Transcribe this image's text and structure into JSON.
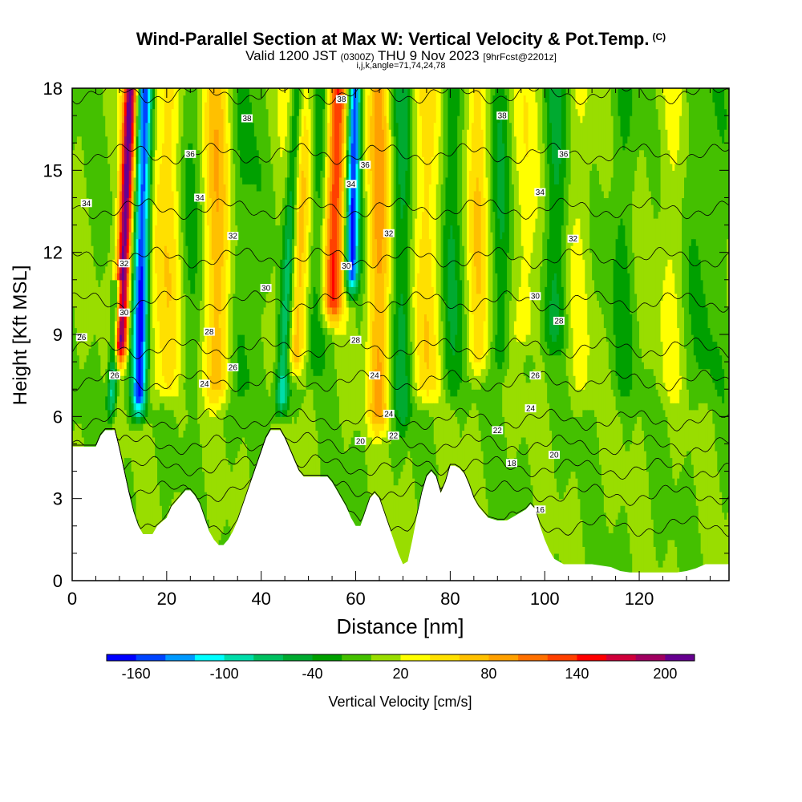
{
  "title": {
    "main": "Wind-Parallel Section at Max W: Vertical Velocity & Pot.Temp.",
    "copyright": "(C)",
    "valid_prefix": "Valid 1200 JST",
    "valid_utc": "(0300Z)",
    "valid_date": "THU 9 Nov 2023",
    "forecast": "[9hrFcst@2201z]",
    "indices": "i,j,k,angle=71,74,24,78"
  },
  "chart_data": {
    "type": "heatmap",
    "xlabel": "Distance [nm]",
    "ylabel": "Height [Kft MSL]",
    "xlim": [
      0,
      139
    ],
    "ylim": [
      0,
      18
    ],
    "xticks": [
      0,
      20,
      40,
      60,
      80,
      100,
      120
    ],
    "yticks": [
      0,
      3,
      6,
      9,
      12,
      15,
      18
    ],
    "colorbar": {
      "label": "Vertical Velocity [cm/s]",
      "ticks": [
        -160,
        -100,
        -40,
        20,
        80,
        140,
        200
      ],
      "levels": [
        -180,
        -160,
        -140,
        -120,
        -100,
        -80,
        -60,
        -40,
        -20,
        0,
        20,
        40,
        60,
        80,
        100,
        120,
        140,
        160,
        180,
        200,
        220
      ],
      "colors": [
        "#0000ff",
        "#0044ff",
        "#0099ff",
        "#00ffff",
        "#00ddaa",
        "#00c060",
        "#00aa30",
        "#00a000",
        "#44c000",
        "#99dd00",
        "#ffff00",
        "#ffe000",
        "#ffc000",
        "#ffa000",
        "#ff7000",
        "#ff4000",
        "#ff0000",
        "#d0003a",
        "#a00060",
        "#660090"
      ]
    },
    "background_w": 0,
    "w_features": [
      {
        "x": 10,
        "z": [
          7.5,
          18
        ],
        "w": 220,
        "width": 1.4,
        "slope": 0.22
      },
      {
        "x": 14,
        "z": [
          5.5,
          18
        ],
        "w": -170,
        "width": 1.6,
        "slope": 0.12
      },
      {
        "x": 8,
        "z": [
          5.5,
          11
        ],
        "w": -100,
        "width": 1.0,
        "slope": 0.3
      },
      {
        "x": 20,
        "z": [
          6,
          18
        ],
        "w": 60,
        "width": 3.5,
        "slope": 0
      },
      {
        "x": 24,
        "z": [
          6,
          18
        ],
        "w": -30,
        "width": 2.5,
        "slope": 0
      },
      {
        "x": 31,
        "z": [
          6,
          18
        ],
        "w": 70,
        "width": 3.0,
        "slope": 0
      },
      {
        "x": 36,
        "z": [
          6,
          18
        ],
        "w": -30,
        "width": 2.5,
        "slope": 0
      },
      {
        "x": 44,
        "z": [
          5.5,
          18
        ],
        "w": -110,
        "width": 1.5,
        "slope": 0.3
      },
      {
        "x": 47,
        "z": [
          7,
          18
        ],
        "w": 90,
        "width": 2.5,
        "slope": 0.1
      },
      {
        "x": 51,
        "z": [
          7,
          18
        ],
        "w": -40,
        "width": 2.0,
        "slope": 0.1
      },
      {
        "x": 55,
        "z": [
          9,
          18
        ],
        "w": 140,
        "width": 2.0,
        "slope": 0.12
      },
      {
        "x": 59,
        "z": [
          10,
          18
        ],
        "w": -160,
        "width": 1.3,
        "slope": 0.1
      },
      {
        "x": 65,
        "z": [
          5,
          18
        ],
        "w": 80,
        "width": 2.5,
        "slope": 0
      },
      {
        "x": 70,
        "z": [
          5,
          18
        ],
        "w": -50,
        "width": 2.0,
        "slope": 0
      },
      {
        "x": 75,
        "z": [
          6,
          18
        ],
        "w": 60,
        "width": 2.5,
        "slope": 0
      },
      {
        "x": 80,
        "z": [
          6,
          18
        ],
        "w": -40,
        "width": 2.0,
        "slope": 0
      },
      {
        "x": 86,
        "z": [
          7,
          18
        ],
        "w": 50,
        "width": 2.5,
        "slope": 0
      },
      {
        "x": 91,
        "z": [
          7,
          18
        ],
        "w": -40,
        "width": 2.0,
        "slope": 0
      },
      {
        "x": 96,
        "z": [
          8,
          18
        ],
        "w": 40,
        "width": 2.5,
        "slope": 0
      },
      {
        "x": 102,
        "z": [
          8,
          18
        ],
        "w": -40,
        "width": 2.5,
        "slope": 0
      },
      {
        "x": 108,
        "z": [
          6,
          18
        ],
        "w": 20,
        "width": 3.0,
        "slope": 0
      },
      {
        "x": 116,
        "z": [
          6,
          18
        ],
        "w": -20,
        "width": 3.0,
        "slope": 0
      },
      {
        "x": 126,
        "z": [
          6,
          18
        ],
        "w": 20,
        "width": 3.0,
        "slope": 0
      },
      {
        "x": 134,
        "z": [
          6,
          18
        ],
        "w": -20,
        "width": 3.0,
        "slope": 0
      }
    ],
    "terrain": {
      "x": [
        0,
        1,
        5,
        6,
        7,
        8,
        9,
        10,
        11,
        12,
        13,
        14,
        15,
        17,
        18,
        20,
        21,
        22,
        23,
        24,
        25,
        26,
        27,
        28,
        29,
        30,
        31,
        32,
        33,
        34,
        35,
        36,
        37,
        38,
        39,
        40,
        41,
        42,
        43,
        44,
        45,
        46,
        47,
        48,
        49,
        50,
        52,
        54,
        55,
        56,
        57,
        58,
        59,
        60,
        61,
        62,
        63,
        64,
        65,
        66,
        67,
        68,
        69,
        70,
        71,
        72,
        73,
        74,
        75,
        76,
        77,
        78,
        79,
        80,
        81,
        82,
        83,
        84,
        85,
        86,
        88,
        90,
        92,
        94,
        96,
        97,
        98,
        99,
        100,
        101,
        102,
        104,
        106,
        108,
        110,
        112,
        114,
        116,
        118,
        120,
        122,
        124,
        126,
        128,
        130,
        132,
        134,
        136,
        138,
        139
      ],
      "z": [
        4.9,
        4.9,
        4.9,
        5.3,
        5.5,
        5.5,
        5.5,
        4.8,
        4.0,
        3.2,
        2.5,
        2.0,
        1.7,
        1.7,
        2.0,
        2.3,
        2.7,
        2.9,
        3.1,
        3.3,
        3.3,
        3.1,
        2.8,
        2.3,
        1.8,
        1.5,
        1.3,
        1.3,
        1.5,
        1.8,
        2.2,
        2.7,
        3.2,
        3.7,
        4.2,
        4.7,
        5.2,
        5.5,
        5.5,
        5.5,
        5.2,
        4.8,
        4.4,
        4.0,
        3.8,
        3.8,
        3.8,
        3.8,
        3.6,
        3.3,
        3.0,
        2.7,
        2.3,
        2.0,
        2.0,
        2.5,
        3.0,
        3.2,
        3.0,
        2.5,
        2.0,
        1.5,
        1.0,
        0.6,
        0.7,
        1.5,
        2.4,
        3.2,
        3.8,
        4.0,
        3.8,
        3.2,
        3.6,
        4.2,
        4.2,
        4.1,
        3.9,
        3.5,
        3.0,
        2.7,
        2.3,
        2.2,
        2.2,
        2.4,
        2.6,
        2.8,
        2.6,
        2.0,
        1.5,
        1.1,
        0.8,
        0.6,
        0.6,
        0.6,
        0.6,
        0.55,
        0.5,
        0.35,
        0.3,
        0.3,
        0.3,
        0.3,
        0.3,
        0.3,
        0.35,
        0.45,
        0.6,
        0.6,
        0.6,
        0.6
      ]
    },
    "theta_contours": {
      "levels": [
        16,
        18,
        20,
        22,
        24,
        26,
        28,
        30,
        32,
        34,
        36,
        38
      ],
      "level_heights": [
        2.2,
        3.3,
        4.2,
        5.0,
        5.9,
        7.3,
        8.5,
        10.2,
        11.8,
        13.6,
        15.6,
        17.8
      ],
      "labels": [
        {
          "text": "16",
          "x": 99,
          "z": 2.6
        },
        {
          "text": "18",
          "x": 93,
          "z": 4.3
        },
        {
          "text": "20",
          "x": 102,
          "z": 4.6
        },
        {
          "text": "20",
          "x": 61,
          "z": 5.1
        },
        {
          "text": "22",
          "x": 90,
          "z": 5.5
        },
        {
          "text": "22",
          "x": 68,
          "z": 5.3
        },
        {
          "text": "24",
          "x": 97,
          "z": 6.3
        },
        {
          "text": "24",
          "x": 67,
          "z": 6.1
        },
        {
          "text": "24",
          "x": 28,
          "z": 7.2
        },
        {
          "text": "24",
          "x": 64,
          "z": 7.5
        },
        {
          "text": "26",
          "x": 9,
          "z": 7.5
        },
        {
          "text": "26",
          "x": 34,
          "z": 7.8
        },
        {
          "text": "26",
          "x": 98,
          "z": 7.5
        },
        {
          "text": "26",
          "x": 2,
          "z": 8.9
        },
        {
          "text": "28",
          "x": 29,
          "z": 9.1
        },
        {
          "text": "28",
          "x": 60,
          "z": 8.8
        },
        {
          "text": "28",
          "x": 103,
          "z": 9.5
        },
        {
          "text": "30",
          "x": 11,
          "z": 9.8
        },
        {
          "text": "30",
          "x": 41,
          "z": 10.7
        },
        {
          "text": "30",
          "x": 58,
          "z": 11.5
        },
        {
          "text": "30",
          "x": 98,
          "z": 10.4
        },
        {
          "text": "32",
          "x": 11,
          "z": 11.6
        },
        {
          "text": "32",
          "x": 34,
          "z": 12.6
        },
        {
          "text": "32",
          "x": 67,
          "z": 12.7
        },
        {
          "text": "32",
          "x": 106,
          "z": 12.5
        },
        {
          "text": "34",
          "x": 3,
          "z": 13.8
        },
        {
          "text": "34",
          "x": 27,
          "z": 14.0
        },
        {
          "text": "34",
          "x": 59,
          "z": 14.5
        },
        {
          "text": "34",
          "x": 99,
          "z": 14.2
        },
        {
          "text": "36",
          "x": 25,
          "z": 15.6
        },
        {
          "text": "36",
          "x": 62,
          "z": 15.2
        },
        {
          "text": "36",
          "x": 104,
          "z": 15.6
        },
        {
          "text": "38",
          "x": 37,
          "z": 16.9
        },
        {
          "text": "38",
          "x": 57,
          "z": 17.6
        },
        {
          "text": "38",
          "x": 91,
          "z": 17.0
        }
      ]
    }
  }
}
